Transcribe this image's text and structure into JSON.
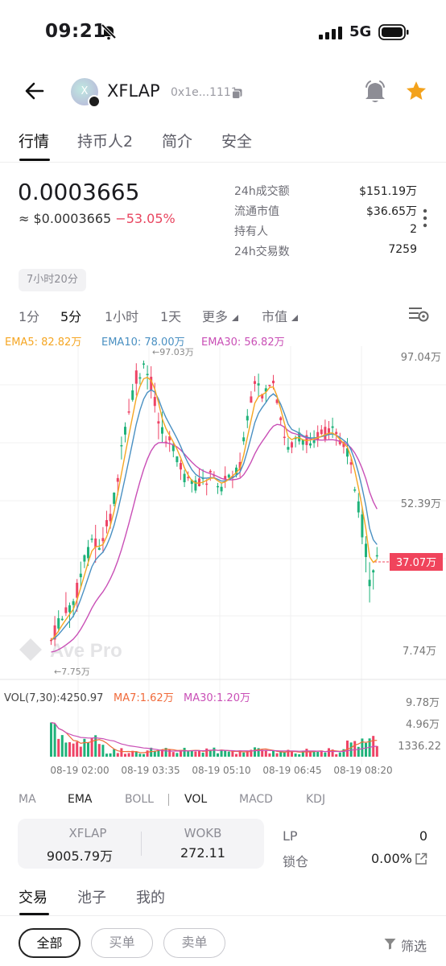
{
  "status_bar": {
    "time": "09:21",
    "network": "5G"
  },
  "header": {
    "token_name": "XFLAP",
    "address": "0x1e...1111",
    "avatar_letter": "X"
  },
  "tabs": [
    "行情",
    "持币人2",
    "简介",
    "安全"
  ],
  "price": {
    "main": "0.0003665",
    "usd_prefix": "≈ $0.0003665",
    "change": "−53.05%"
  },
  "stats": [
    {
      "label": "24h成交额",
      "value": "$151.19万"
    },
    {
      "label": "流通市值",
      "value": "$36.65万"
    },
    {
      "label": "持有人",
      "value": "2"
    },
    {
      "label": "24h交易数",
      "value": "7259"
    }
  ],
  "age_chip": "7小时20分",
  "intervals": [
    "1分",
    "5分",
    "1小时",
    "1天",
    "更多",
    "市值"
  ],
  "ema_legend": {
    "ema5": "EMA5: 82.82万",
    "ema10": "EMA10: 78.00万",
    "ema30": "EMA30: 56.82万"
  },
  "axis_labels": {
    "y_top": "97.04万",
    "y_mid": "52.39万",
    "y_low": "7.74万",
    "current": "37.07万",
    "high_mark": "←97.03万",
    "low_mark": "←7.75万"
  },
  "watermark": "Ave Pro",
  "vol_legend": {
    "vol": "VOL(7,30):4250.97",
    "ma7": "MA7:1.62万",
    "ma30": "MA30:1.20万"
  },
  "vol_axis": [
    "9.78万",
    "4.96万",
    "1336.22"
  ],
  "time_axis": [
    "08-19 02:00",
    "08-19 03:35",
    "08-19 05:10",
    "08-19 06:45",
    "08-19 08:20"
  ],
  "indicators": [
    "MA",
    "EMA",
    "BOLL",
    "VOL",
    "MACD",
    "KDJ"
  ],
  "pool": {
    "token_a": "XFLAP",
    "amount_a": "9005.79万",
    "token_b": "WOKB",
    "amount_b": "272.11"
  },
  "lp": {
    "label": "LP",
    "value": "0"
  },
  "lock": {
    "label": "锁仓",
    "value": "0.00%"
  },
  "bottom_tabs": [
    "交易",
    "池子",
    "我的"
  ],
  "filter_pills": [
    "全部",
    "买单",
    "卖单"
  ],
  "filter_label": "筛选",
  "colors": {
    "up": "#1fb27a",
    "down": "#ee4466",
    "ema5": "#f5a623",
    "ema10": "#4a90c2",
    "ema30": "#c94fb6",
    "price_tag": "#f0445c"
  }
}
